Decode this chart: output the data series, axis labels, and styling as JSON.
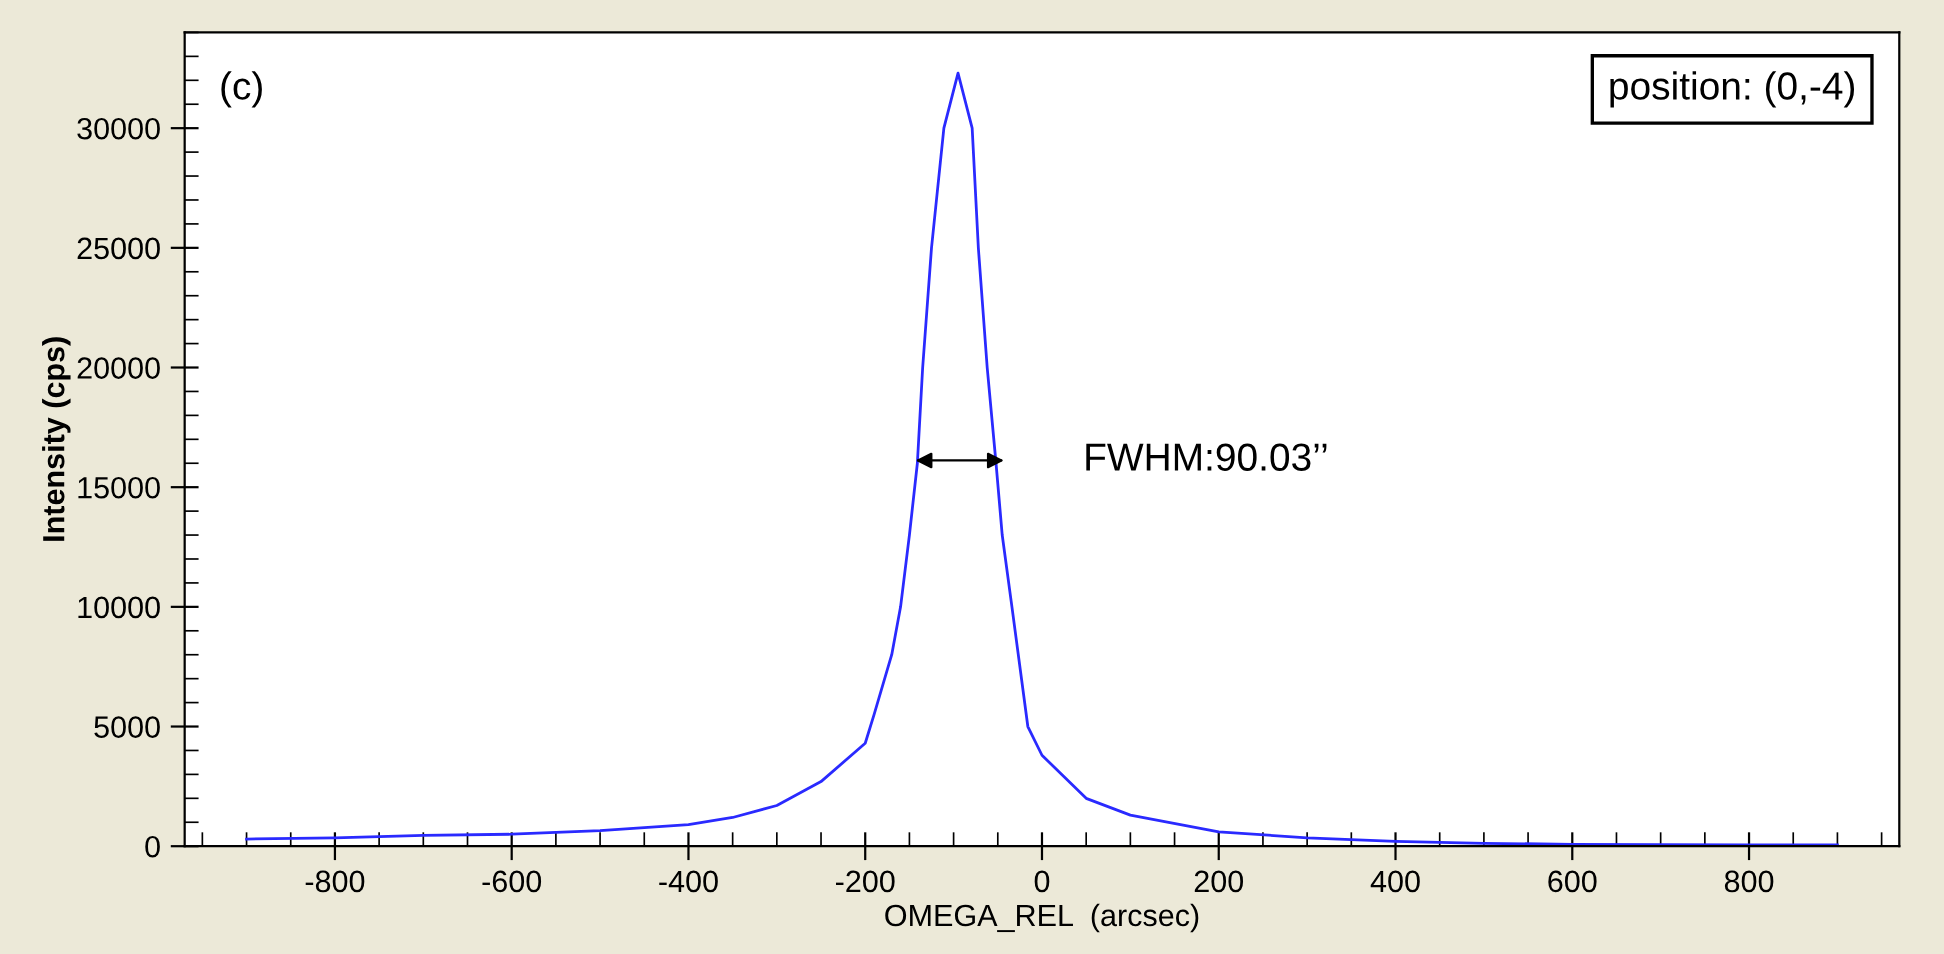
{
  "chart_data": {
    "type": "line",
    "xlabel": "OMEGA_REL  (arcsec)",
    "ylabel": "Intensity (cps)",
    "xlim": [
      -970,
      970
    ],
    "xticks": [
      -800,
      -600,
      -400,
      -200,
      0,
      200,
      400,
      600,
      800
    ],
    "ylim": [
      0,
      34000
    ],
    "yticks": [
      0,
      5000,
      10000,
      15000,
      20000,
      25000,
      30000
    ],
    "grid": false,
    "legend": false,
    "marker": "none",
    "line_style": "solid",
    "series": [
      {
        "color": "#2a2aff",
        "x": [
          -900,
          -800,
          -700,
          -600,
          -500,
          -400,
          -350,
          -300,
          -250,
          -200,
          -190,
          -170,
          -160,
          -150,
          -141,
          -135,
          -125,
          -111,
          -95,
          -79,
          -72,
          -62,
          -52,
          -45,
          -34,
          -16,
          0,
          50,
          100,
          200,
          300,
          400,
          500,
          600,
          700,
          800,
          900
        ],
        "values": [
          300,
          350,
          450,
          500,
          650,
          900,
          1200,
          1700,
          2700,
          4300,
          5500,
          8000,
          10000,
          13000,
          16000,
          20000,
          25000,
          30000,
          32300,
          30000,
          25000,
          20000,
          16000,
          13000,
          10000,
          5000,
          3800,
          2000,
          1300,
          600,
          350,
          200,
          120,
          80,
          60,
          50,
          50
        ]
      }
    ],
    "annotations": [
      "(c)",
      "position: (0,-4)",
      "FWHM:90.03’’"
    ]
  }
}
